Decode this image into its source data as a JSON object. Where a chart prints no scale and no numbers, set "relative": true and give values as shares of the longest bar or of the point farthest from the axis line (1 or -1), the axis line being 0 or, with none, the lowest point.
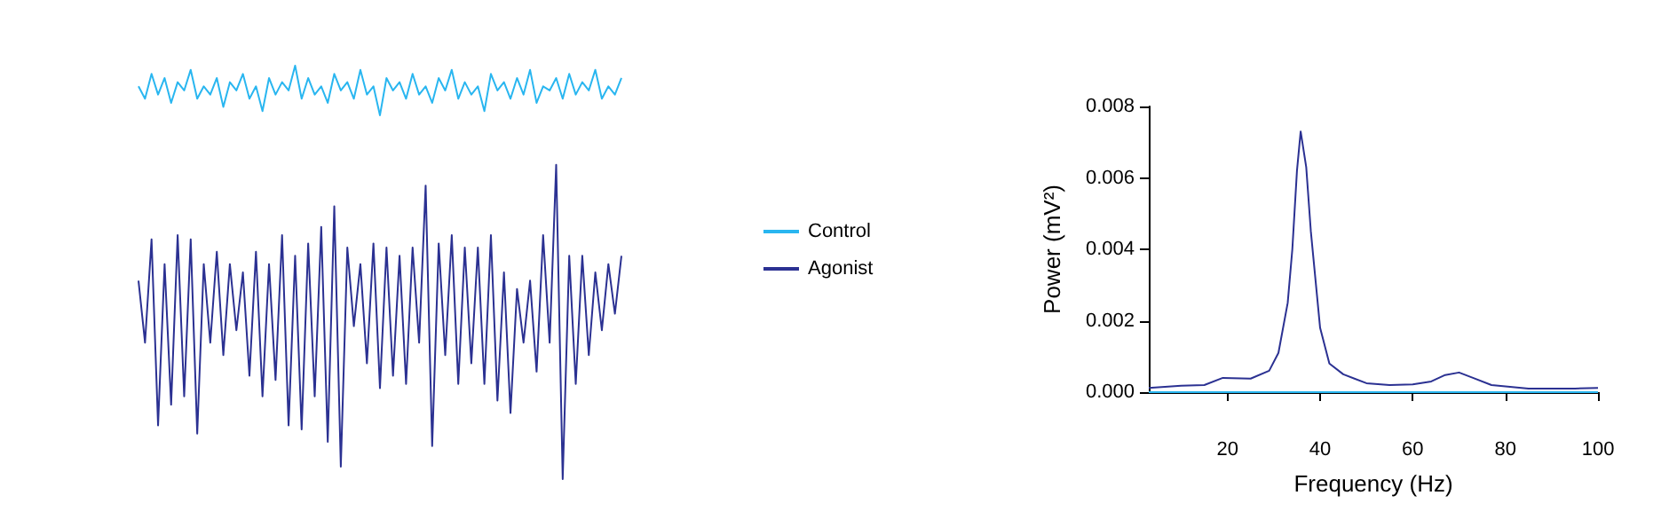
{
  "chart_data": [
    {
      "type": "line",
      "relative": true,
      "legend": "right",
      "tick_labels": false,
      "categories": [
        null,
        null,
        null,
        null,
        null,
        null,
        null,
        null,
        null,
        null,
        null,
        null,
        null,
        null,
        null,
        null,
        null,
        null,
        null,
        null,
        null,
        null,
        null,
        null,
        null,
        null,
        null,
        null,
        null,
        null,
        null,
        null,
        null,
        null,
        null,
        null,
        null,
        null,
        null,
        null,
        null,
        null,
        null,
        null,
        null,
        null,
        null,
        null,
        null,
        null,
        null,
        null,
        null,
        null,
        null,
        null,
        null,
        null,
        null,
        null,
        null,
        null,
        null,
        null,
        null,
        null,
        null,
        null,
        null,
        null,
        null,
        null,
        null,
        null,
        null
      ],
      "series": [
        {
          "name": "Control",
          "color": "#29b6f0",
          "values": [
            0.95,
            0.92,
            0.98,
            0.93,
            0.97,
            0.91,
            0.96,
            0.94,
            0.99,
            0.92,
            0.95,
            0.93,
            0.97,
            0.9,
            0.96,
            0.94,
            0.98,
            0.92,
            0.95,
            0.89,
            0.97,
            0.93,
            0.96,
            0.94,
            1.0,
            0.92,
            0.97,
            0.93,
            0.95,
            0.91,
            0.98,
            0.94,
            0.96,
            0.92,
            0.99,
            0.93,
            0.95,
            0.88,
            0.97,
            0.94,
            0.96,
            0.92,
            0.98,
            0.93,
            0.95,
            0.91,
            0.97,
            0.94,
            0.99,
            0.92,
            0.96,
            0.93,
            0.95,
            0.89,
            0.98,
            0.94,
            0.96,
            0.92,
            0.97,
            0.93,
            0.99,
            0.91,
            0.95,
            0.94,
            0.97,
            0.92,
            0.98,
            0.93,
            0.96,
            0.94,
            0.99,
            0.92,
            0.95,
            0.93,
            0.97
          ]
        },
        {
          "name": "Agonist",
          "color": "#2b3192",
          "values": [
            0.48,
            0.33,
            0.58,
            0.13,
            0.52,
            0.18,
            0.59,
            0.2,
            0.58,
            0.11,
            0.52,
            0.33,
            0.55,
            0.3,
            0.52,
            0.36,
            0.5,
            0.25,
            0.55,
            0.2,
            0.52,
            0.24,
            0.59,
            0.13,
            0.54,
            0.12,
            0.57,
            0.2,
            0.61,
            0.09,
            0.66,
            0.03,
            0.56,
            0.37,
            0.52,
            0.28,
            0.57,
            0.22,
            0.56,
            0.25,
            0.54,
            0.23,
            0.56,
            0.33,
            0.71,
            0.08,
            0.57,
            0.3,
            0.59,
            0.23,
            0.56,
            0.28,
            0.56,
            0.23,
            0.59,
            0.19,
            0.5,
            0.16,
            0.46,
            0.33,
            0.48,
            0.26,
            0.59,
            0.33,
            0.76,
            0.0,
            0.54,
            0.23,
            0.54,
            0.3,
            0.5,
            0.36,
            0.52,
            0.4,
            0.54
          ]
        }
      ]
    },
    {
      "type": "line",
      "xlabel": "Frequency (Hz)",
      "ylabel": "Power (mV²)",
      "xlim": [
        3,
        100
      ],
      "xticks": [
        20,
        40,
        60,
        80,
        100
      ],
      "ylim": [
        0,
        0.008
      ],
      "yticks": [
        {
          "value": 0,
          "label": "0.000"
        },
        {
          "value": 0.002,
          "label": "0.002"
        },
        {
          "value": 0.004,
          "label": "0.004"
        },
        {
          "value": 0.006,
          "label": "0.006"
        },
        {
          "value": 0.008,
          "label": "0.008"
        }
      ],
      "grid": false,
      "series": [
        {
          "color": "#29b6f0",
          "x": [
            3,
            100
          ],
          "values": [
            0,
            0
          ]
        },
        {
          "color": "#2b3192",
          "x": [
            3,
            10,
            15,
            19,
            25,
            29,
            31,
            33,
            34,
            35,
            35.8,
            37,
            38,
            40,
            42,
            45,
            50,
            55,
            60,
            64,
            67,
            70,
            73,
            77,
            85,
            95,
            100
          ],
          "values": [
            0.00012,
            0.00018,
            0.0002,
            0.0004,
            0.00038,
            0.0006,
            0.0011,
            0.0025,
            0.004,
            0.0062,
            0.0073,
            0.0063,
            0.0045,
            0.0018,
            0.0008,
            0.0005,
            0.00025,
            0.0002,
            0.00022,
            0.0003,
            0.00048,
            0.00055,
            0.0004,
            0.0002,
            0.0001,
            0.0001,
            0.00012
          ]
        }
      ]
    }
  ]
}
